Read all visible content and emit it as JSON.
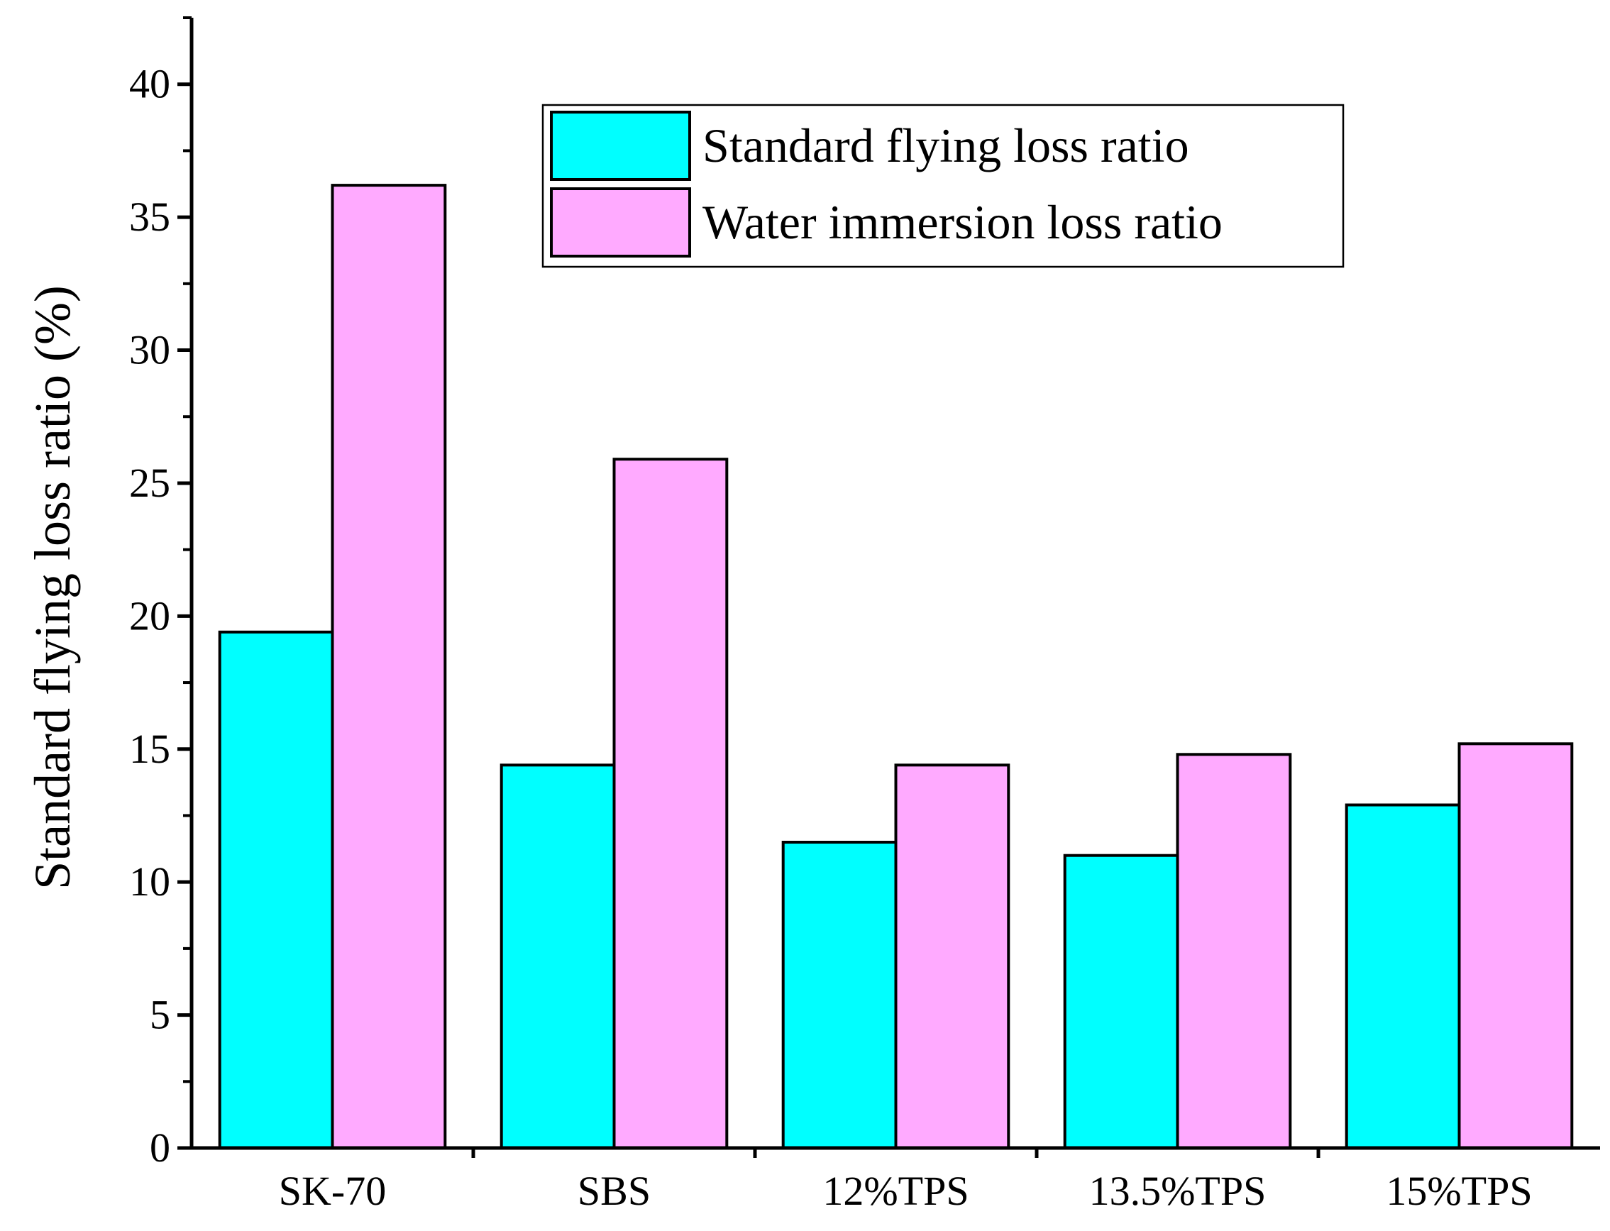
{
  "chart_data": {
    "type": "bar",
    "title": "",
    "xlabel": "",
    "ylabel": "Standard flying loss ratio (%)",
    "ylim": [
      0,
      42.5
    ],
    "yticks": [
      0,
      5,
      10,
      15,
      20,
      25,
      30,
      35,
      40
    ],
    "categories": [
      "SK-70",
      "SBS",
      "12%TPS",
      "13.5%TPS",
      "15%TPS"
    ],
    "series": [
      {
        "name": "Standard flying loss ratio",
        "color": "#00ffff",
        "values": [
          19.4,
          14.4,
          11.5,
          11.0,
          12.9
        ]
      },
      {
        "name": "Water immersion loss ratio",
        "color": "#ffaaff",
        "values": [
          36.2,
          25.9,
          14.4,
          14.8,
          15.2
        ]
      }
    ],
    "legend_position": "top-right",
    "grid": false
  }
}
